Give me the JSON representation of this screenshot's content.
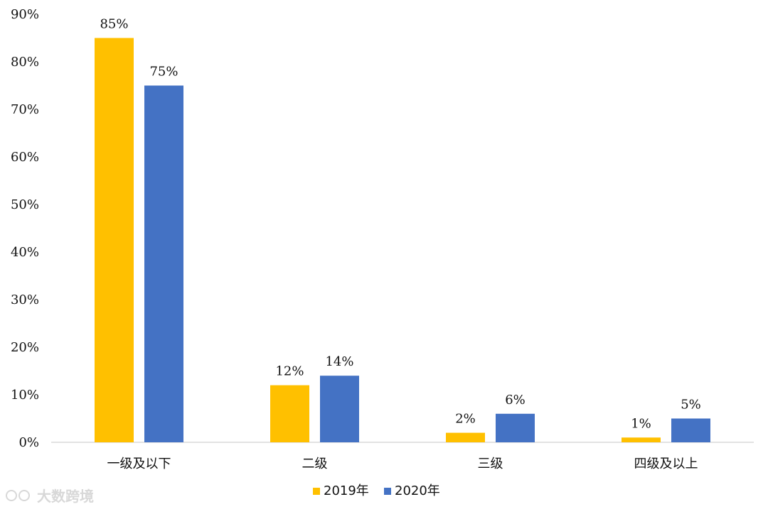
{
  "chart_data": {
    "type": "bar",
    "title": "",
    "xlabel": "",
    "ylabel": "",
    "categories": [
      "一级及以下",
      "二级",
      "三级",
      "四级及以上"
    ],
    "series": [
      {
        "name": "2019年",
        "color": "#ffc000",
        "values": [
          85,
          12,
          2,
          1
        ],
        "labels": [
          "85%",
          "12%",
          "2%",
          "1%"
        ]
      },
      {
        "name": "2020年",
        "color": "#4472c4",
        "values": [
          75,
          14,
          6,
          5
        ],
        "labels": [
          "75%",
          "14%",
          "6%",
          "5%"
        ]
      }
    ],
    "ylim": [
      0,
      90
    ],
    "yticks": [
      0,
      10,
      20,
      30,
      40,
      50,
      60,
      70,
      80,
      90
    ],
    "ytick_labels": [
      "0%",
      "10%",
      "20%",
      "30%",
      "40%",
      "50%",
      "60%",
      "70%",
      "80%",
      "90%"
    ],
    "grid": false,
    "legend_position": "bottom-center"
  },
  "watermark": {
    "text": "大数跨境"
  }
}
